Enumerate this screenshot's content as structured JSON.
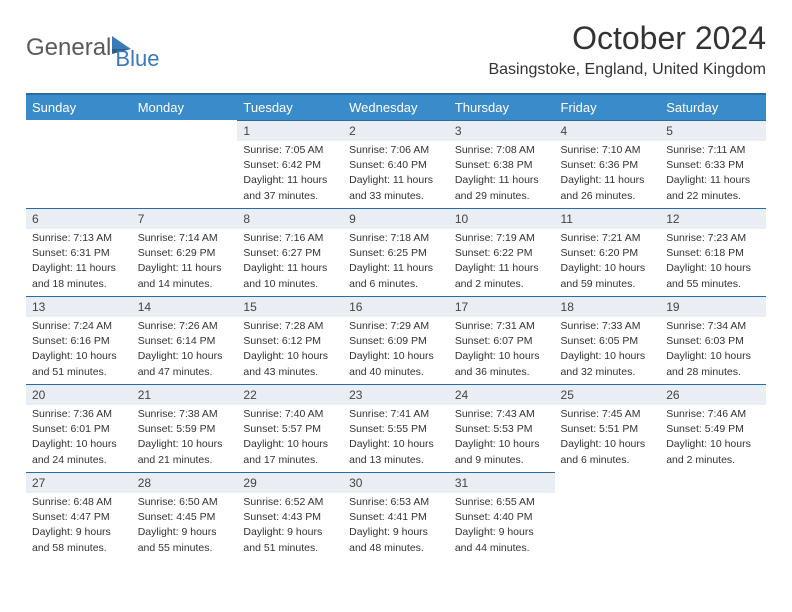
{
  "logo": {
    "general": "General",
    "blue": "Blue"
  },
  "title": "October 2024",
  "location": "Basingstoke, England, United Kingdom",
  "colors": {
    "header_bg": "#3a8bc9",
    "header_border": "#2a6ca0",
    "daynum_bg": "#e8eef3",
    "logo_blue": "#3a7ab8",
    "logo_gray": "#5a5a5a"
  },
  "weekdays": [
    "Sunday",
    "Monday",
    "Tuesday",
    "Wednesday",
    "Thursday",
    "Friday",
    "Saturday"
  ],
  "weeks": [
    [
      {
        "blank": true
      },
      {
        "blank": true
      },
      {
        "n": "1",
        "sr": "7:05 AM",
        "ss": "6:42 PM",
        "dl": "11 hours and 37 minutes."
      },
      {
        "n": "2",
        "sr": "7:06 AM",
        "ss": "6:40 PM",
        "dl": "11 hours and 33 minutes."
      },
      {
        "n": "3",
        "sr": "7:08 AM",
        "ss": "6:38 PM",
        "dl": "11 hours and 29 minutes."
      },
      {
        "n": "4",
        "sr": "7:10 AM",
        "ss": "6:36 PM",
        "dl": "11 hours and 26 minutes."
      },
      {
        "n": "5",
        "sr": "7:11 AM",
        "ss": "6:33 PM",
        "dl": "11 hours and 22 minutes."
      }
    ],
    [
      {
        "n": "6",
        "sr": "7:13 AM",
        "ss": "6:31 PM",
        "dl": "11 hours and 18 minutes."
      },
      {
        "n": "7",
        "sr": "7:14 AM",
        "ss": "6:29 PM",
        "dl": "11 hours and 14 minutes."
      },
      {
        "n": "8",
        "sr": "7:16 AM",
        "ss": "6:27 PM",
        "dl": "11 hours and 10 minutes."
      },
      {
        "n": "9",
        "sr": "7:18 AM",
        "ss": "6:25 PM",
        "dl": "11 hours and 6 minutes."
      },
      {
        "n": "10",
        "sr": "7:19 AM",
        "ss": "6:22 PM",
        "dl": "11 hours and 2 minutes."
      },
      {
        "n": "11",
        "sr": "7:21 AM",
        "ss": "6:20 PM",
        "dl": "10 hours and 59 minutes."
      },
      {
        "n": "12",
        "sr": "7:23 AM",
        "ss": "6:18 PM",
        "dl": "10 hours and 55 minutes."
      }
    ],
    [
      {
        "n": "13",
        "sr": "7:24 AM",
        "ss": "6:16 PM",
        "dl": "10 hours and 51 minutes."
      },
      {
        "n": "14",
        "sr": "7:26 AM",
        "ss": "6:14 PM",
        "dl": "10 hours and 47 minutes."
      },
      {
        "n": "15",
        "sr": "7:28 AM",
        "ss": "6:12 PM",
        "dl": "10 hours and 43 minutes."
      },
      {
        "n": "16",
        "sr": "7:29 AM",
        "ss": "6:09 PM",
        "dl": "10 hours and 40 minutes."
      },
      {
        "n": "17",
        "sr": "7:31 AM",
        "ss": "6:07 PM",
        "dl": "10 hours and 36 minutes."
      },
      {
        "n": "18",
        "sr": "7:33 AM",
        "ss": "6:05 PM",
        "dl": "10 hours and 32 minutes."
      },
      {
        "n": "19",
        "sr": "7:34 AM",
        "ss": "6:03 PM",
        "dl": "10 hours and 28 minutes."
      }
    ],
    [
      {
        "n": "20",
        "sr": "7:36 AM",
        "ss": "6:01 PM",
        "dl": "10 hours and 24 minutes."
      },
      {
        "n": "21",
        "sr": "7:38 AM",
        "ss": "5:59 PM",
        "dl": "10 hours and 21 minutes."
      },
      {
        "n": "22",
        "sr": "7:40 AM",
        "ss": "5:57 PM",
        "dl": "10 hours and 17 minutes."
      },
      {
        "n": "23",
        "sr": "7:41 AM",
        "ss": "5:55 PM",
        "dl": "10 hours and 13 minutes."
      },
      {
        "n": "24",
        "sr": "7:43 AM",
        "ss": "5:53 PM",
        "dl": "10 hours and 9 minutes."
      },
      {
        "n": "25",
        "sr": "7:45 AM",
        "ss": "5:51 PM",
        "dl": "10 hours and 6 minutes."
      },
      {
        "n": "26",
        "sr": "7:46 AM",
        "ss": "5:49 PM",
        "dl": "10 hours and 2 minutes."
      }
    ],
    [
      {
        "n": "27",
        "sr": "6:48 AM",
        "ss": "4:47 PM",
        "dl": "9 hours and 58 minutes."
      },
      {
        "n": "28",
        "sr": "6:50 AM",
        "ss": "4:45 PM",
        "dl": "9 hours and 55 minutes."
      },
      {
        "n": "29",
        "sr": "6:52 AM",
        "ss": "4:43 PM",
        "dl": "9 hours and 51 minutes."
      },
      {
        "n": "30",
        "sr": "6:53 AM",
        "ss": "4:41 PM",
        "dl": "9 hours and 48 minutes."
      },
      {
        "n": "31",
        "sr": "6:55 AM",
        "ss": "4:40 PM",
        "dl": "9 hours and 44 minutes."
      },
      {
        "trailing": true
      },
      {
        "trailing": true
      }
    ]
  ],
  "labels": {
    "sunrise": "Sunrise:",
    "sunset": "Sunset:",
    "daylight": "Daylight:"
  }
}
